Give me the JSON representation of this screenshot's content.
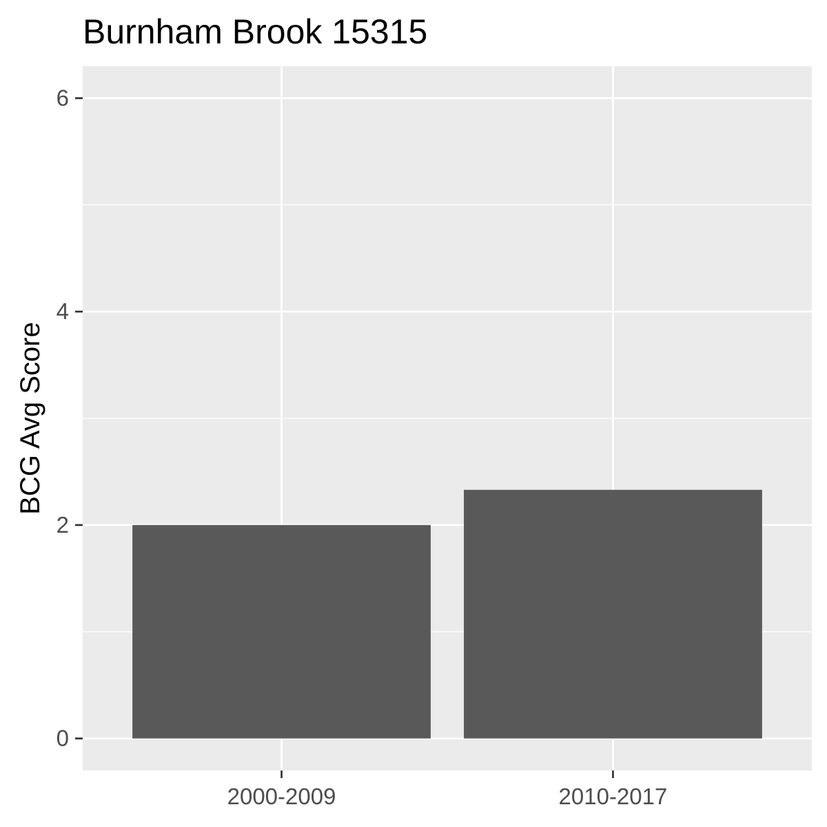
{
  "chart_data": {
    "type": "bar",
    "title": "Burnham Brook 15315",
    "xlabel": "",
    "ylabel": "BCG Avg Score",
    "categories": [
      "2000-2009",
      "2010-2017"
    ],
    "values": [
      2.0,
      2.33
    ],
    "ylim": [
      -0.3,
      6.3
    ],
    "yticks": [
      0,
      2,
      4,
      6
    ],
    "grid": true,
    "legend": "none",
    "colors": {
      "bar": "#595959",
      "panel": "#ebebeb",
      "grid": "#ffffff",
      "axis_text": "#4d4d4d",
      "tick": "#333333"
    }
  }
}
